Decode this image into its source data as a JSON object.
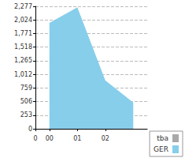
{
  "chart_data": {
    "type": "area",
    "x": [
      0.5,
      1.5,
      2.5,
      3.5
    ],
    "xlim": [
      0,
      4
    ],
    "xticks": [
      {
        "value": 0,
        "label": "0"
      },
      {
        "value": 0.5,
        "label": "00"
      },
      {
        "value": 1.5,
        "label": "01"
      },
      {
        "value": 2.5,
        "label": "02"
      }
    ],
    "ylim": [
      0,
      2277
    ],
    "yticks": [
      0,
      253,
      506,
      759,
      {
        "value": 1012,
        "label": "1,012"
      },
      {
        "value": 1265,
        "label": "1,265"
      },
      {
        "value": 1518,
        "label": "1,518"
      },
      {
        "value": 1771,
        "label": "1,771"
      },
      {
        "value": 2024,
        "label": "2,024"
      },
      {
        "value": 2277,
        "label": "2,277"
      }
    ],
    "series": [
      {
        "name": "tba",
        "color": "#a9a9a9",
        "values": [
          null,
          null,
          null,
          null
        ]
      },
      {
        "name": "GER",
        "color": "#87ceeb",
        "values": [
          1970,
          2260,
          900,
          490
        ]
      }
    ],
    "grid": true,
    "legend": "lower right"
  }
}
